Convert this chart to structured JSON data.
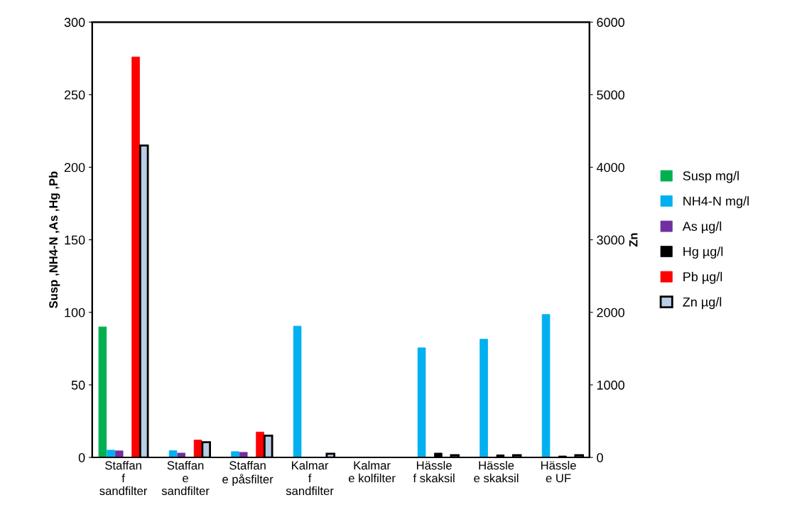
{
  "chart_data": {
    "type": "bar",
    "ylabel": "Susp ,NH4-N ,As ,Hg ,Pb",
    "y2label": "Zn",
    "categories": [
      "Staffan\nf\nsandfilter",
      "Staffan\ne\nsandfilter",
      "Staffan\ne påsfilter",
      "Kalmar\nf\nsandfilter",
      "Kalmar\ne kolfilter",
      "Hässle\nf skaksil",
      "Hässle\ne skaksil",
      "Hässle\ne UF"
    ],
    "series": [
      {
        "name": "Susp mg/l",
        "color": "#00b050",
        "values": [
          90,
          null,
          null,
          null,
          null,
          null,
          null,
          null
        ]
      },
      {
        "name": "NH4-N mg/l",
        "color": "#00b0f0",
        "values": [
          5,
          4.7,
          4,
          90.5,
          null,
          75.5,
          81.5,
          98.5
        ]
      },
      {
        "name": "As µg/l",
        "color": "#7030a0",
        "values": [
          4.5,
          3,
          3.5,
          null,
          null,
          null,
          null,
          null
        ]
      },
      {
        "name": "Hg µg/l",
        "color": "#000000",
        "values": [
          null,
          null,
          null,
          null,
          null,
          3,
          1.8,
          1
        ]
      },
      {
        "name": "Pb µg/l",
        "color": "#ff0000",
        "values": [
          276,
          12,
          17.5,
          null,
          null,
          null,
          null,
          null
        ]
      },
      {
        "name": "Zn µg/l",
        "color": "#b9cde5",
        "axis": "y2",
        "values": [
          4300,
          210,
          300,
          50,
          null,
          30,
          30,
          30
        ]
      }
    ],
    "ylim": [
      0,
      300
    ],
    "yticks": [
      0,
      50,
      100,
      150,
      200,
      250,
      300
    ],
    "y2lim": [
      0,
      6000
    ],
    "y2ticks": [
      0,
      1000,
      2000,
      3000,
      4000,
      5000,
      6000
    ],
    "legend": "right",
    "grid": false
  }
}
